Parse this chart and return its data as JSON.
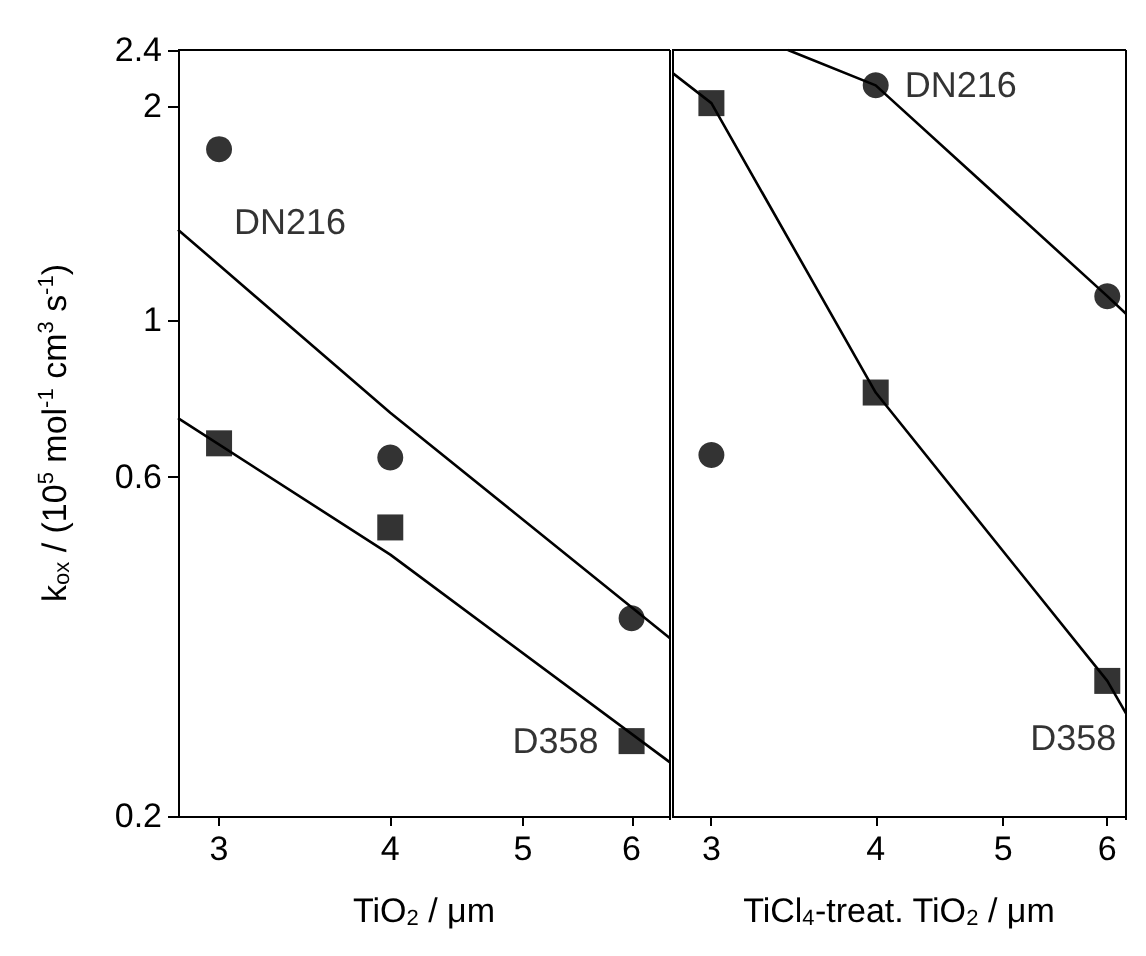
{
  "chart_data": [
    {
      "type": "scatter",
      "xlabel": "TiO$_{2}$ / μm",
      "ylabel": "k$_{ox}$ / (10$^{5}$ mol$^{-1}$ cm$^{3}$ s$^{-1}$)",
      "xlim": [
        2.8,
        6.4
      ],
      "xticks": [
        3,
        4,
        5,
        6
      ],
      "ylim": [
        0.2,
        2.4
      ],
      "yticks": [
        0.2,
        0.6,
        1,
        2,
        2.4
      ],
      "log": "xy",
      "grid": false,
      "series": [
        {
          "name": "DN216",
          "marker": "circle",
          "color": "#000000",
          "x": [
            3,
            4,
            6
          ],
          "values": [
            1.74,
            0.64,
            0.38
          ]
        },
        {
          "name": "D358",
          "marker": "square",
          "color": "#000000",
          "x": [
            3,
            4,
            6
          ],
          "values": [
            0.67,
            0.51,
            0.255
          ]
        },
        {
          "type": "line",
          "marker": "none",
          "color": "#000000",
          "x": [
            2.8,
            4,
            6.4
          ],
          "values": [
            1.34,
            0.74,
            0.356
          ]
        },
        {
          "type": "line",
          "marker": "none",
          "color": "#000000",
          "x": [
            2.8,
            4,
            6.4
          ],
          "values": [
            0.727,
            0.467,
            0.238
          ]
        }
      ]
    },
    {
      "type": "scatter",
      "xlabel": "TiCl$_{4}$-treat. TiO$_{2}$ / μm",
      "xlim": [
        2.8,
        6.2
      ],
      "xticks": [
        3,
        4,
        5,
        6
      ],
      "ylim": [
        0.2,
        2.4
      ],
      "yticks": [
        0.2,
        0.6,
        1,
        2,
        2.4
      ],
      "log": "xy",
      "grid": false,
      "tick_labels": "x",
      "series": [
        {
          "name": "DN216",
          "marker": "circle",
          "color": "#000000",
          "x": [
            3,
            4,
            6
          ],
          "values": [
            0.645,
            2.14,
            1.08
          ]
        },
        {
          "name": "D358",
          "marker": "square",
          "color": "#000000",
          "x": [
            3,
            4,
            6
          ],
          "values": [
            2.02,
            0.79,
            0.31
          ]
        },
        {
          "type": "line",
          "marker": "none",
          "color": "#000000",
          "x": [
            3.43,
            4,
            6,
            6.2
          ],
          "values": [
            2.4,
            2.14,
            1.08,
            1.02
          ]
        },
        {
          "type": "line",
          "marker": "none",
          "color": "#000000",
          "x": [
            2.8,
            3,
            4,
            6,
            6.2
          ],
          "values": [
            2.23,
            2.02,
            0.79,
            0.31,
            0.279
          ]
        }
      ]
    }
  ]
}
